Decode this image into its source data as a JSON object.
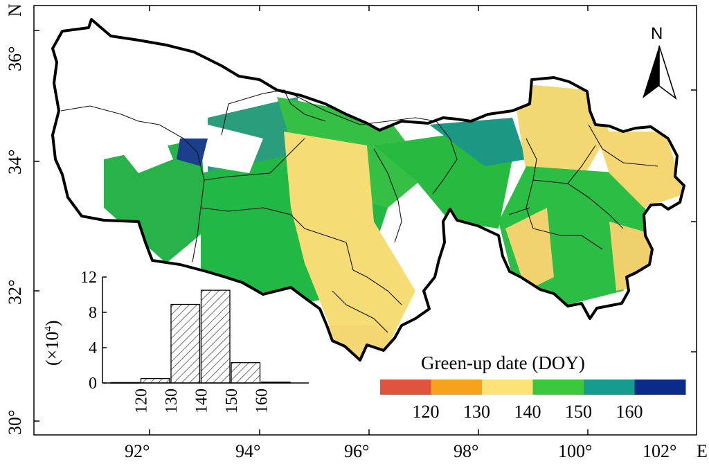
{
  "map": {
    "lon_ticks": [
      "92°",
      "94°",
      "96°",
      "98°",
      "100°",
      "102°"
    ],
    "lat_ticks": [
      "30°",
      "32°",
      "34°",
      "36°"
    ],
    "lon_axis_letter": "E",
    "lat_axis_letter": "N"
  },
  "north_arrow": {
    "label": "N"
  },
  "legend": {
    "title": "Green-up date (DOY)",
    "ticks": [
      "120",
      "130",
      "140",
      "150",
      "160"
    ],
    "colors": [
      "#e0533d",
      "#f7a21b",
      "#fbe37a",
      "#3cc83c",
      "#169c8e",
      "#0c2a8a"
    ]
  },
  "histogram": {
    "ylabel_main": "(×10",
    "ylabel_exp": "4",
    "ylabel_close": ")",
    "y_ticks": [
      "0",
      "4",
      "8",
      "12"
    ],
    "x_ticks": [
      "120",
      "130",
      "140",
      "150",
      "160"
    ]
  },
  "chart_data": {
    "type": "bar",
    "title": "",
    "xlabel": "",
    "ylabel": "(×10^4)",
    "categories": [
      "110-120",
      "120-130",
      "130-140",
      "140-150",
      "150-160",
      "160-170"
    ],
    "values": [
      0.05,
      0.5,
      8.9,
      10.5,
      2.3,
      0.1
    ],
    "ylim": [
      0,
      12
    ]
  }
}
